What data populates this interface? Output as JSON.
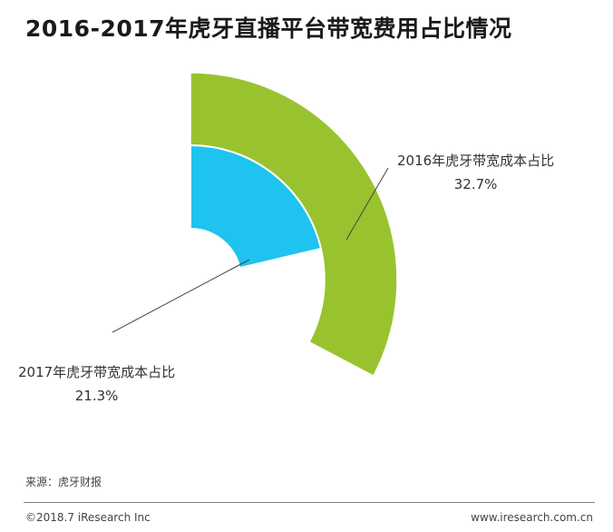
{
  "title": "2016-2017年虎牙直播平台带宽费用占比情况",
  "chart_data": {
    "type": "radial-bar",
    "series": [
      {
        "label": "2016年虎牙带宽成本占比",
        "value": 32.7,
        "value_text": "32.7%",
        "color": "#99c32e"
      },
      {
        "label": "2017年虎牙带宽成本占比",
        "value": 21.3,
        "value_text": "21.3%",
        "color": "#1fc3ef"
      }
    ]
  },
  "source": "来源：虎牙财报",
  "footer": {
    "copyright": "©2018.7 iResearch Inc",
    "website": "www.iresearch.com.cn"
  }
}
